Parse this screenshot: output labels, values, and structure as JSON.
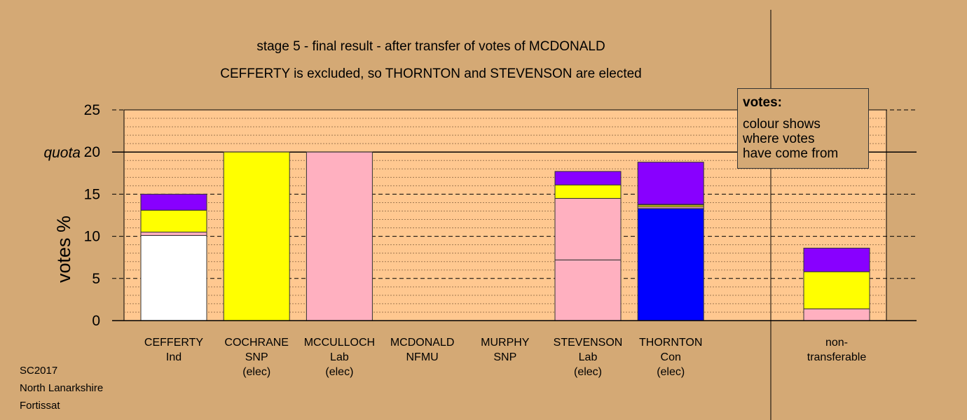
{
  "chart_data": {
    "type": "bar",
    "stacked": true,
    "title": "stage 5 - final result - after transfer of votes of MCDONALD",
    "subtitle": "CEFFERTY is excluded, so THORNTON and STEVENSON are elected",
    "ylabel": "votes %",
    "ylim": [
      0,
      25
    ],
    "yticks": [
      0,
      5,
      10,
      15,
      20,
      25
    ],
    "quota": {
      "label": "quota",
      "value": 20
    },
    "colors": {
      "independent": "#ffffff",
      "snp": "#ffff00",
      "labour": "#ffb0c0",
      "conservative": "#0000ff",
      "other": "#8800ff",
      "plot_background": "#ffc890"
    },
    "categories": [
      {
        "name": "CEFFERTY",
        "party": "Ind",
        "note": "",
        "segments": [
          {
            "color": "#ffffff",
            "value": 10.1
          },
          {
            "color": "#ffb0c0",
            "value": 0.4
          },
          {
            "color": "#ffff00",
            "value": 2.6
          },
          {
            "color": "#8800ff",
            "value": 1.9
          }
        ]
      },
      {
        "name": "COCHRANE",
        "party": "SNP",
        "note": "(elec)",
        "segments": [
          {
            "color": "#ffff00",
            "value": 20.0
          }
        ]
      },
      {
        "name": "MCCULLOCH",
        "party": "Lab",
        "note": "(elec)",
        "segments": [
          {
            "color": "#ffb0c0",
            "value": 20.0
          }
        ]
      },
      {
        "name": "MCDONALD",
        "party": "NFMU",
        "note": "",
        "segments": []
      },
      {
        "name": "MURPHY",
        "party": "SNP",
        "note": "",
        "segments": []
      },
      {
        "name": "STEVENSON",
        "party": "Lab",
        "note": "(elec)",
        "segments": [
          {
            "color": "#ffb0c0",
            "value": 7.2
          },
          {
            "color": "#ffb0c0",
            "value": 7.3
          },
          {
            "color": "#ffff00",
            "value": 1.6
          },
          {
            "color": "#8800ff",
            "value": 1.6
          }
        ]
      },
      {
        "name": "THORNTON",
        "party": "Con",
        "note": "(elec)",
        "segments": [
          {
            "color": "#0000ff",
            "value": 13.3
          },
          {
            "color": "#ffb0c0",
            "value": 0.2
          },
          {
            "color": "#ffff00",
            "value": 0.2
          },
          {
            "color": "#ffb0c0",
            "value": 0.1
          },
          {
            "color": "#8800ff",
            "value": 5.0
          }
        ]
      }
    ],
    "non_transferable": {
      "name": "non-",
      "name2": "transferable",
      "segments": [
        {
          "color": "#ffb0c0",
          "value": 1.4
        },
        {
          "color": "#ffff00",
          "value": 4.4
        },
        {
          "color": "#8800ff",
          "value": 2.8
        }
      ]
    }
  },
  "legend": {
    "title": "votes:",
    "lines": [
      "colour shows",
      "where votes",
      "have come from"
    ]
  },
  "footer": {
    "election": "SC2017",
    "council": "North Lanarkshire",
    "ward": "Fortissat"
  }
}
